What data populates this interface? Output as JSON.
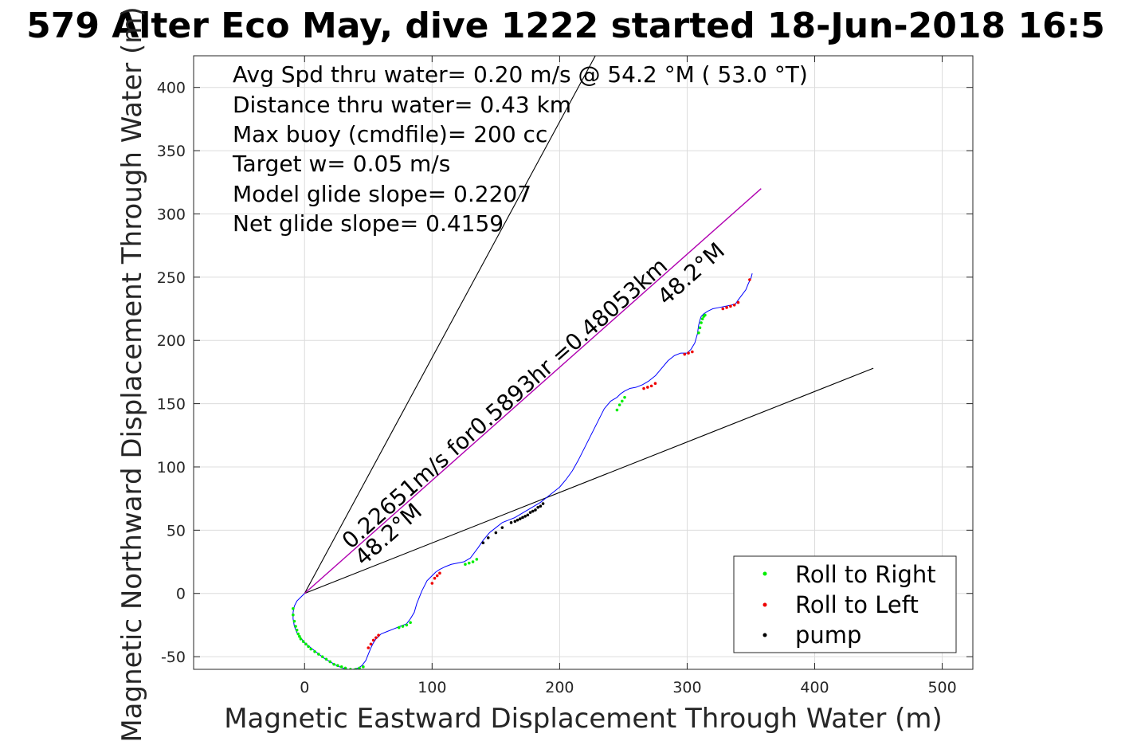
{
  "chart_data": {
    "type": "line",
    "title": "579 Alter Eco May, dive 1222 started 18-Jun-2018 16:5",
    "xlabel": "Magnetic Eastward Displacement Through Water (m)",
    "ylabel": "Magnetic Northward Displacement Through Water (m)",
    "xlim": [
      -87,
      524
    ],
    "ylim": [
      -60,
      425
    ],
    "xticks": [
      0,
      100,
      200,
      300,
      400,
      500
    ],
    "yticks": [
      -50,
      0,
      50,
      100,
      150,
      200,
      250,
      300,
      350,
      400
    ],
    "xtick_labels": [
      "0",
      "100",
      "200",
      "300",
      "400",
      "500"
    ],
    "ytick_labels": [
      "-50",
      "0",
      "50",
      "100",
      "150",
      "200",
      "250",
      "300",
      "350",
      "400"
    ],
    "grid": true,
    "legend_placement": "bottom-right",
    "annotations": [
      "Avg Spd thru water=  0.20 m/s @  54.2 °M ( 53.0 °T)",
      "Distance thru water=  0.43 km",
      "Max buoy (cmdfile)= 200 cc",
      "Target w= 0.05 m/s",
      "Model glide slope= 0.2207",
      "Net glide slope= 0.4159"
    ],
    "vector_label_upper": "0.22651m/s for0.5893hr =0.48053km",
    "vector_label_heading": "48.2°M",
    "vector_label_heading_end": "48.2°M",
    "reference_lines": [
      {
        "name": "bound-steep",
        "x": [
          0,
          228
        ],
        "y": [
          0,
          425
        ],
        "color": "#000000"
      },
      {
        "name": "bound-shallow",
        "x": [
          0,
          446
        ],
        "y": [
          0,
          178
        ],
        "color": "#000000"
      },
      {
        "name": "net-vector",
        "x": [
          0,
          358
        ],
        "y": [
          0,
          320
        ],
        "color": "#b000b0"
      }
    ],
    "series": [
      {
        "name": "track",
        "color": "#0000ff",
        "x": [
          0,
          -3,
          -6,
          -8,
          -9,
          -9,
          -8,
          -6,
          -3,
          0,
          5,
          10,
          15,
          20,
          25,
          30,
          34,
          38,
          42,
          45,
          48,
          50,
          52,
          54,
          56,
          58,
          60,
          65,
          70,
          75,
          80,
          83,
          86,
          88,
          92,
          96,
          100,
          103,
          106,
          110,
          115,
          120,
          125,
          130,
          133,
          136,
          140,
          145,
          150,
          155,
          160,
          165,
          170,
          175,
          180,
          185,
          190,
          195,
          200,
          205,
          210,
          215,
          220,
          225,
          230,
          235,
          240,
          245,
          248,
          251,
          255,
          260,
          265,
          270,
          275,
          280,
          285,
          290,
          295,
          300,
          303,
          306,
          308,
          309,
          310,
          311,
          313,
          316,
          320,
          325,
          330,
          335,
          338,
          340,
          343,
          346,
          348,
          350,
          351
        ],
        "y": [
          0,
          -3,
          -6,
          -10,
          -15,
          -20,
          -26,
          -31,
          -35,
          -39,
          -43,
          -47,
          -51,
          -54,
          -57,
          -59,
          -60,
          -60,
          -59,
          -57,
          -53,
          -48,
          -43,
          -39,
          -36,
          -34,
          -32,
          -30,
          -28,
          -26,
          -24,
          -20,
          -15,
          -8,
          2,
          10,
          14,
          17,
          19,
          21,
          23,
          24,
          25,
          28,
          32,
          36,
          42,
          48,
          52,
          56,
          58,
          60,
          63,
          66,
          69,
          72,
          76,
          80,
          84,
          90,
          97,
          106,
          116,
          126,
          136,
          146,
          152,
          155,
          158,
          160,
          162,
          163,
          165,
          168,
          172,
          178,
          184,
          188,
          190,
          190,
          193,
          198,
          205,
          212,
          216,
          219,
          221,
          223,
          225,
          226,
          227,
          228,
          229,
          232,
          236,
          240,
          245,
          249,
          253
        ]
      },
      {
        "name": "Roll to Right",
        "color": "#00ee00",
        "x": [
          -9,
          -9,
          -8,
          -7,
          -6,
          -5,
          -4,
          -3,
          -1,
          1,
          3,
          5,
          8,
          11,
          14,
          17,
          20,
          23,
          26,
          29,
          32,
          36,
          40,
          43,
          46,
          74,
          77,
          80,
          83,
          126,
          129,
          132,
          135,
          245,
          247,
          249,
          251,
          309,
          310,
          311,
          312,
          313,
          314
        ],
        "y": [
          -12,
          -17,
          -22,
          -26,
          -29,
          -32,
          -34,
          -36,
          -38,
          -40,
          -42,
          -44,
          -46,
          -48,
          -50,
          -52,
          -54,
          -56,
          -57,
          -58,
          -59,
          -60,
          -60,
          -59,
          -58,
          -27,
          -26,
          -25,
          -23,
          23,
          24,
          25,
          27,
          145,
          149,
          152,
          155,
          206,
          210,
          214,
          217,
          219,
          220
        ]
      },
      {
        "name": "Roll to Left",
        "color": "#ee0000",
        "x": [
          50,
          52,
          54,
          56,
          58,
          100,
          102,
          104,
          106,
          266,
          269,
          272,
          275,
          298,
          301,
          304,
          328,
          331,
          334,
          337,
          340,
          349
        ],
        "y": [
          -43,
          -40,
          -37,
          -35,
          -33,
          8,
          12,
          14,
          16,
          162,
          163,
          164,
          166,
          189,
          190,
          191,
          225,
          226,
          227,
          228,
          230,
          248
        ]
      },
      {
        "name": "pump",
        "color": "#000000",
        "x": [
          140,
          144,
          150,
          155,
          162,
          165,
          167,
          169,
          171,
          173,
          175,
          177,
          179,
          181,
          183,
          185,
          187
        ],
        "y": [
          40,
          44,
          48,
          52,
          56,
          57,
          58,
          59,
          60,
          61,
          62,
          64,
          65,
          66,
          68,
          69,
          71
        ]
      }
    ]
  }
}
